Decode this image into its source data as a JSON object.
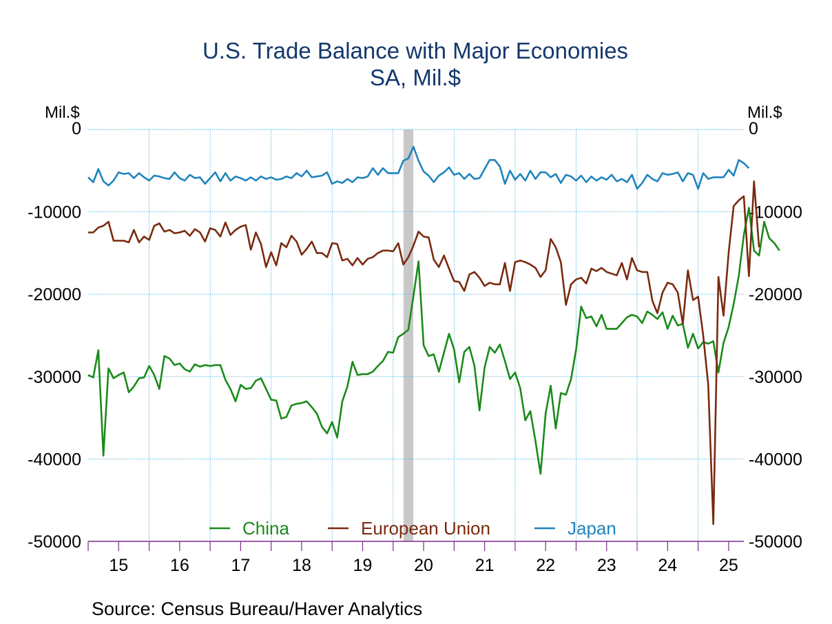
{
  "chart_data": {
    "type": "line",
    "title": "U.S. Trade Balance with Major Economies",
    "subtitle": "SA, Mil.$",
    "ylabel_left": "Mil.$",
    "ylabel_right": "Mil.$",
    "ylim": [
      -50000,
      0
    ],
    "y_ticks": [
      0,
      -10000,
      -20000,
      -30000,
      -40000,
      -50000
    ],
    "y_tick_labels": [
      "0",
      "-10000",
      "-20000",
      "-30000",
      "-40000",
      "-50000"
    ],
    "x_tick_labels": [
      "15",
      "16",
      "17",
      "18",
      "19",
      "20",
      "21",
      "22",
      "23",
      "24",
      "25"
    ],
    "x_range": [
      2015.0,
      2025.75
    ],
    "recession": {
      "start": 2020.17,
      "end": 2020.33
    },
    "grid": true,
    "legend_position": "bottom-center",
    "series": [
      {
        "name": "China",
        "color": "#1a8a1a",
        "x_start": 2015.0,
        "step": 0.0833333,
        "values": [
          -29800,
          -30100,
          -26800,
          -39600,
          -29000,
          -30200,
          -29800,
          -29500,
          -31900,
          -31200,
          -30200,
          -30100,
          -28700,
          -29800,
          -31500,
          -27500,
          -27800,
          -28600,
          -28400,
          -29100,
          -29400,
          -28500,
          -28800,
          -28600,
          -28700,
          -28600,
          -28600,
          -30400,
          -31500,
          -33000,
          -31000,
          -31500,
          -31400,
          -30500,
          -30200,
          -31500,
          -32800,
          -32900,
          -35100,
          -34900,
          -33500,
          -33300,
          -33200,
          -33000,
          -33700,
          -34500,
          -36100,
          -36900,
          -35500,
          -37400,
          -33000,
          -31200,
          -28200,
          -29800,
          -29700,
          -29700,
          -29400,
          -28700,
          -28100,
          -27000,
          -27100,
          -25200,
          -24800,
          -24300,
          -20200,
          -16000,
          -26200,
          -27500,
          -27300,
          -29400,
          -27100,
          -24800,
          -26700,
          -30700,
          -27000,
          -26400,
          -28700,
          -34100,
          -28900,
          -26400,
          -27100,
          -26100,
          -28100,
          -30300,
          -29500,
          -31400,
          -35300,
          -34200,
          -37800,
          -41800,
          -34500,
          -31100,
          -36300,
          -32000,
          -32200,
          -30300,
          -26700,
          -21500,
          -22900,
          -22700,
          -23900,
          -22500,
          -24200,
          -24200,
          -24200,
          -23500,
          -22800,
          -22500,
          -22700,
          -23500,
          -22100,
          -22500,
          -23000,
          -22200,
          -24200,
          -22600,
          -23800,
          -23600,
          -26500,
          -24800,
          -26600,
          -25800,
          -26000,
          -25700,
          -29500,
          -25900,
          -24000,
          -21200,
          -17800,
          -12800,
          -9500,
          -14700,
          -15300,
          -11200,
          -13200,
          -13800,
          -14700
        ]
      },
      {
        "name": "European Union",
        "color": "#7a2a0f",
        "x_start": 2015.0,
        "step": 0.0833333,
        "values": [
          -12500,
          -12500,
          -11900,
          -11700,
          -11200,
          -13500,
          -13500,
          -13500,
          -13700,
          -12200,
          -13700,
          -13000,
          -13400,
          -11700,
          -11400,
          -12400,
          -12200,
          -12600,
          -12500,
          -12300,
          -12900,
          -12100,
          -12500,
          -13600,
          -12000,
          -12200,
          -13000,
          -11300,
          -12800,
          -12200,
          -11800,
          -11600,
          -14600,
          -12500,
          -13900,
          -16700,
          -14900,
          -16500,
          -13800,
          -14300,
          -12900,
          -13600,
          -15200,
          -14500,
          -13600,
          -15000,
          -15000,
          -15500,
          -13800,
          -13900,
          -15900,
          -15700,
          -16500,
          -15600,
          -16400,
          -15700,
          -15500,
          -15000,
          -14700,
          -14700,
          -14800,
          -13800,
          -16400,
          -15500,
          -14100,
          -12400,
          -13000,
          -13100,
          -15800,
          -16700,
          -15300,
          -16900,
          -18400,
          -18500,
          -19600,
          -17600,
          -17300,
          -18000,
          -19000,
          -18600,
          -18800,
          -18800,
          -16200,
          -19600,
          -16100,
          -15900,
          -16100,
          -16400,
          -16800,
          -17900,
          -17100,
          -13300,
          -14300,
          -16100,
          -21300,
          -18800,
          -18200,
          -18000,
          -18700,
          -16900,
          -17200,
          -16800,
          -17300,
          -17500,
          -17700,
          -16200,
          -18200,
          -15600,
          -17100,
          -17300,
          -17300,
          -20800,
          -22300,
          -19800,
          -18600,
          -18800,
          -19800,
          -23600,
          -17100,
          -20700,
          -20300,
          -25000,
          -31000,
          -47900,
          -17900,
          -22600,
          -15000,
          -9300,
          -8600,
          -8100,
          -17800,
          -6300,
          -14300
        ]
      },
      {
        "name": "Japan",
        "color": "#1f84bd",
        "x_start": 2015.0,
        "step": 0.0833333,
        "values": [
          -5800,
          -6400,
          -4800,
          -6300,
          -6800,
          -6200,
          -5200,
          -5400,
          -5300,
          -5900,
          -5300,
          -5800,
          -6200,
          -5600,
          -5700,
          -5900,
          -6000,
          -5200,
          -5900,
          -6200,
          -5500,
          -5900,
          -5800,
          -6600,
          -5900,
          -5200,
          -6300,
          -5300,
          -6200,
          -5700,
          -5900,
          -6200,
          -5800,
          -6200,
          -5700,
          -6000,
          -5800,
          -6100,
          -6000,
          -5700,
          -5900,
          -5300,
          -5700,
          -5000,
          -5800,
          -5700,
          -5600,
          -5200,
          -6600,
          -6300,
          -6500,
          -6000,
          -6400,
          -5800,
          -5900,
          -5700,
          -4700,
          -5500,
          -4700,
          -5300,
          -5300,
          -5300,
          -3800,
          -3500,
          -2100,
          -3800,
          -5100,
          -5600,
          -6400,
          -5600,
          -5200,
          -4600,
          -5500,
          -5300,
          -6000,
          -5400,
          -6000,
          -5900,
          -4800,
          -3700,
          -3700,
          -4500,
          -6600,
          -5000,
          -6100,
          -5400,
          -6200,
          -5000,
          -6000,
          -5200,
          -5200,
          -5800,
          -5400,
          -6500,
          -5500,
          -5700,
          -6200,
          -5600,
          -6400,
          -5700,
          -6200,
          -5800,
          -6100,
          -5500,
          -6300,
          -6000,
          -6400,
          -5500,
          -7200,
          -6500,
          -5500,
          -6000,
          -6300,
          -5300,
          -5500,
          -5400,
          -5200,
          -6300,
          -5300,
          -5500,
          -7200,
          -5300,
          -6000,
          -5800,
          -5800,
          -5800,
          -4900,
          -5600,
          -3700,
          -4100,
          -4700
        ]
      }
    ]
  },
  "legend": {
    "items": [
      "China",
      "European Union",
      "Japan"
    ]
  },
  "source": "Source:  Census Bureau/Haver Analytics"
}
